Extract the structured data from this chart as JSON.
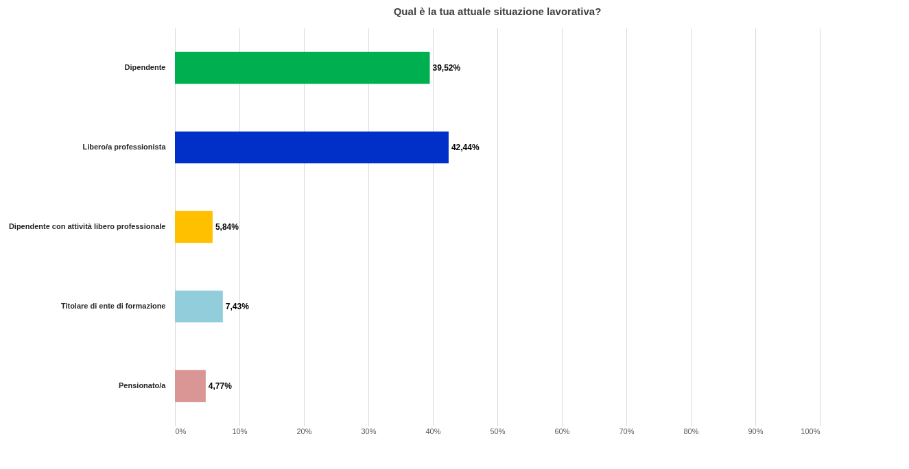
{
  "chart_data": {
    "type": "bar",
    "orientation": "horizontal",
    "title": "Qual è la tua attuale situazione lavorativa?",
    "categories": [
      "Dipendente",
      "Libero/a professionista",
      "Dipendente con attività libero professionale",
      "Titolare di ente di formazione",
      "Pensionato/a"
    ],
    "values": [
      39.52,
      42.44,
      5.84,
      7.43,
      4.77
    ],
    "colors": [
      "#00b050",
      "#0030c8",
      "#ffc000",
      "#92cddc",
      "#d99694"
    ],
    "value_labels": [
      "39,52%",
      "42,44%",
      "5,84%",
      "7,43%",
      "4,77%"
    ],
    "xlim": [
      0,
      100
    ],
    "xticks": [
      {
        "value": 0,
        "label": "0%"
      },
      {
        "value": 10,
        "label": "10%"
      },
      {
        "value": 20,
        "label": "20%"
      },
      {
        "value": 30,
        "label": "30%"
      },
      {
        "value": 40,
        "label": "40%"
      },
      {
        "value": 50,
        "label": "50%"
      },
      {
        "value": 60,
        "label": "60%"
      },
      {
        "value": 70,
        "label": "70%"
      },
      {
        "value": 80,
        "label": "80%"
      },
      {
        "value": 90,
        "label": "90%"
      },
      {
        "value": 100,
        "label": "100%"
      }
    ],
    "grid": "x"
  }
}
